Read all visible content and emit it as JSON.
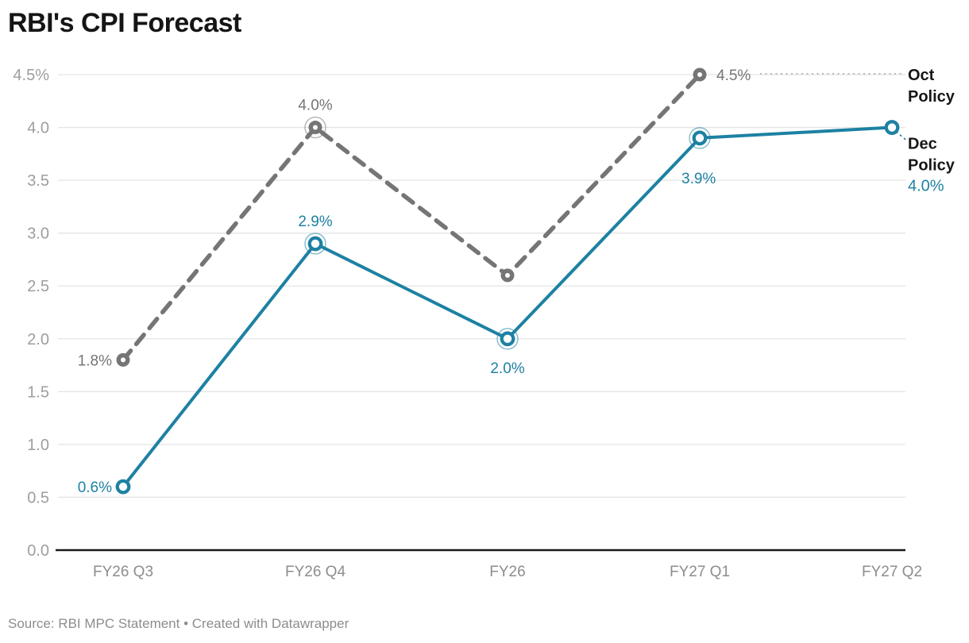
{
  "title": "RBI's CPI Forecast",
  "footer": {
    "full": "Source: RBI MPC Statement • Created with Datawrapper"
  },
  "colors": {
    "background": "#ffffff",
    "title": "#151515",
    "grid": "#e4e4e4",
    "baseline": "#1a1a1a",
    "y_tick_label": "#9e9e9e",
    "x_tick_label": "#8d8d8d",
    "legend_text": "#161616",
    "connector_gray": "#a3a3a3",
    "footer_text": "#8d8d8d"
  },
  "chart_data": {
    "type": "line",
    "title": "RBI's CPI Forecast",
    "xlabel": "",
    "ylabel": "",
    "categories": [
      "FY26 Q3",
      "FY26 Q4",
      "FY26",
      "FY27 Q1",
      "FY27 Q2"
    ],
    "ylim": [
      0,
      4.5
    ],
    "ytick_step": 0.5,
    "ytick_labels": [
      "0.0",
      "0.5",
      "1.0",
      "1.5",
      "2.0",
      "2.5",
      "3.0",
      "3.5",
      "4.0",
      "4.5%"
    ],
    "grid": true,
    "legend_position": "right",
    "series": [
      {
        "name": "Oct Policy",
        "color": "#757575",
        "style": "dashed",
        "values": [
          1.8,
          4.0,
          2.6,
          4.5,
          null
        ],
        "point_labels": [
          {
            "text": "1.8%",
            "placement": "left"
          },
          {
            "text": "4.0%",
            "placement": "above"
          },
          null,
          {
            "text": "4.5%",
            "placement": "right"
          },
          null
        ],
        "halo": [
          false,
          true,
          false,
          false,
          false
        ],
        "legend": {
          "lines": [
            "Oct",
            "Policy"
          ],
          "value": null
        }
      },
      {
        "name": "Dec Policy",
        "color": "#1d81a2",
        "style": "solid",
        "values": [
          0.6,
          2.9,
          2.0,
          3.9,
          4.0
        ],
        "point_labels": [
          {
            "text": "0.6%",
            "placement": "left"
          },
          {
            "text": "2.9%",
            "placement": "above"
          },
          {
            "text": "2.0%",
            "placement": "below"
          },
          {
            "text": "3.9%",
            "placement": "below-left"
          },
          null
        ],
        "halo": [
          false,
          true,
          true,
          true,
          false
        ],
        "legend": {
          "lines": [
            "Dec",
            "Policy"
          ],
          "value": "4.0%"
        }
      }
    ]
  }
}
